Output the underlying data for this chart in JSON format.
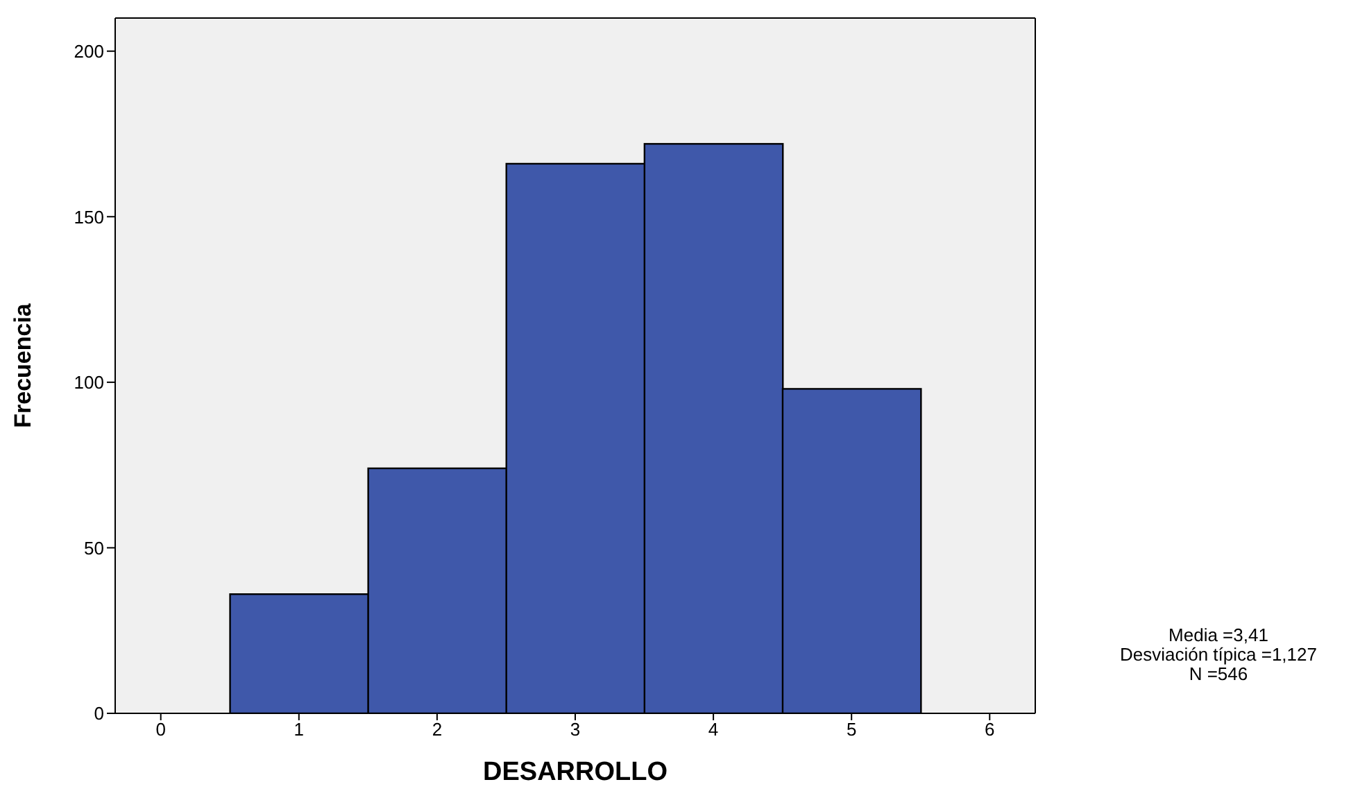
{
  "chart_data": {
    "type": "histogram",
    "xlabel": "DESARROLLO",
    "ylabel": "Frecuencia",
    "bins": [
      0.5,
      1.5,
      2.5,
      3.5,
      4.5,
      5.5
    ],
    "values": [
      36,
      74,
      166,
      172,
      98
    ],
    "color": "#3f58aa",
    "xlim": [
      -0.33,
      6.33
    ],
    "xticks": [
      0,
      1,
      2,
      3,
      4,
      5,
      6
    ],
    "ylim": [
      0,
      210
    ],
    "yticks": [
      0,
      50,
      100,
      150,
      200
    ],
    "annotations": [
      "Media =3,41",
      "Desviación típica =1,127",
      "N =546"
    ]
  }
}
